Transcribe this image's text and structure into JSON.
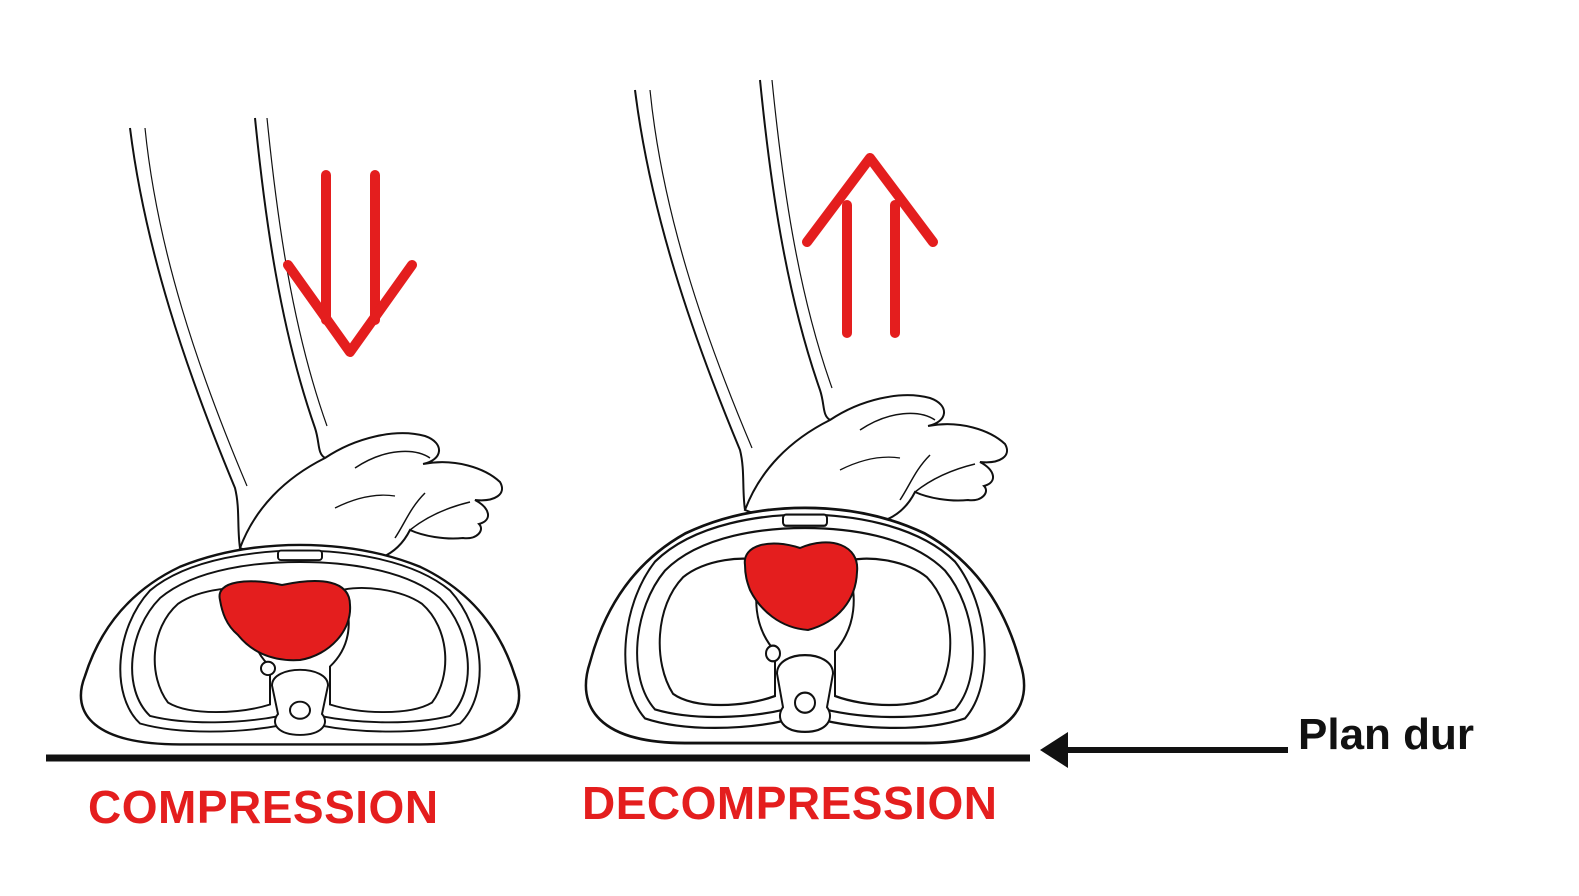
{
  "diagram": {
    "labels": {
      "compression": "COMPRESSION",
      "decompression": "DECOMPRESSION",
      "hard_surface": "Plan dur"
    },
    "colors": {
      "accent_red": "#e41e1e",
      "ink": "#111111",
      "background": "#ffffff"
    },
    "panels": [
      {
        "name": "compression",
        "arrow_direction": "down"
      },
      {
        "name": "decompression",
        "arrow_direction": "up"
      }
    ]
  }
}
